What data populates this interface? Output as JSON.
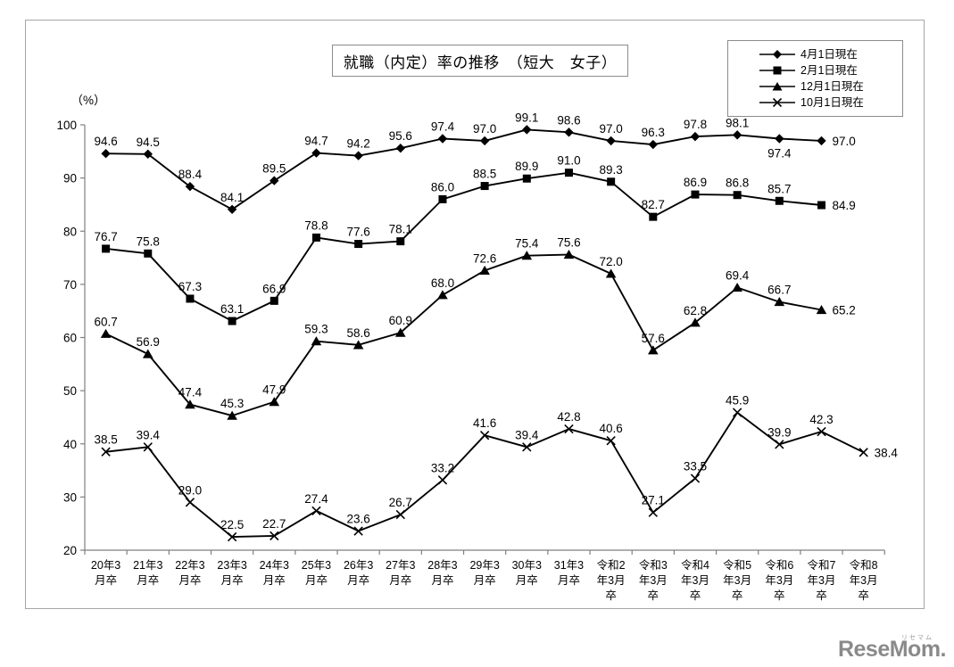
{
  "chart_data": {
    "type": "line",
    "title": "就職（内定）率の推移　（短大　女子）",
    "unit_label": "（%）",
    "categories": [
      "20年3\n月卒",
      "21年3\n月卒",
      "22年3\n月卒",
      "23年3\n月卒",
      "24年3\n月卒",
      "25年3\n月卒",
      "26年3\n月卒",
      "27年3\n月卒",
      "28年3\n月卒",
      "29年3\n月卒",
      "30年3\n月卒",
      "31年3\n月卒",
      "令和2\n年3月\n卒",
      "令和3\n年3月\n卒",
      "令和4\n年3月\n卒",
      "令和5\n年3月\n卒",
      "令和6\n年3月\n卒",
      "令和7\n年3月\n卒",
      "令和8\n年3月\n卒"
    ],
    "ylim": [
      20,
      100
    ],
    "y_ticks": [
      20,
      30,
      40,
      50,
      60,
      70,
      80,
      90,
      100
    ],
    "grid": false,
    "legend_position": "top-right",
    "series": [
      {
        "name": "4月1日現在",
        "marker": "diamond",
        "values": [
          94.6,
          94.5,
          88.4,
          84.1,
          89.5,
          94.7,
          94.2,
          95.6,
          97.4,
          97.0,
          99.1,
          98.6,
          97.0,
          96.3,
          97.8,
          98.1,
          97.4,
          97.0
        ],
        "label_below_indices": [
          16
        ],
        "end_label_right": true
      },
      {
        "name": "2月1日現在",
        "marker": "square",
        "values": [
          76.7,
          75.8,
          67.3,
          63.1,
          66.9,
          78.8,
          77.6,
          78.1,
          86.0,
          88.5,
          89.9,
          91.0,
          89.3,
          82.7,
          86.9,
          86.8,
          85.7,
          84.9
        ],
        "label_below_indices": [],
        "end_label_right": true
      },
      {
        "name": "12月1日現在",
        "marker": "triangle",
        "values": [
          60.7,
          56.9,
          47.4,
          45.3,
          47.9,
          59.3,
          58.6,
          60.9,
          68.0,
          72.6,
          75.4,
          75.6,
          72.0,
          57.6,
          62.8,
          69.4,
          66.7,
          65.2
        ],
        "label_below_indices": [],
        "end_label_right": true
      },
      {
        "name": "10月1日現在",
        "marker": "x",
        "values": [
          38.5,
          39.4,
          29.0,
          22.5,
          22.7,
          27.4,
          23.6,
          26.7,
          33.2,
          41.6,
          39.4,
          42.8,
          40.6,
          27.1,
          33.5,
          45.9,
          39.9,
          42.3,
          38.4
        ],
        "label_below_indices": [],
        "end_label_right": true
      }
    ],
    "colors": {
      "line": "#000000",
      "axis": "#808080",
      "label": "#000000"
    }
  },
  "logo": {
    "text": "ReseMom.",
    "small_text": "リセマム",
    "color": "#8a8a8a"
  }
}
